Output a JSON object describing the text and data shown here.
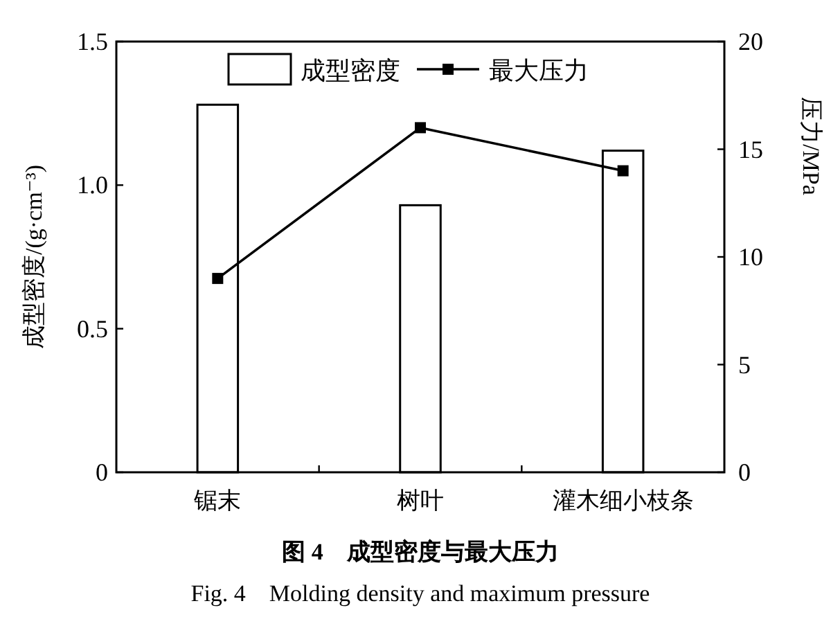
{
  "chart_data": {
    "type": "bar",
    "title": "图 4　成型密度与最大压力",
    "subtitle": "Fig. 4　Molding density and maximum pressure",
    "ylabel": "成型密度/(g·cm⁻³)",
    "y2label": "压力/MPa",
    "categories": [
      "锯末",
      "树叶",
      "灌木细小枝条"
    ],
    "series": [
      {
        "name": "成型密度",
        "color": "#ffffff",
        "values": [
          1.28,
          0.93,
          1.12
        ]
      },
      {
        "name": "最大压力",
        "type": "line",
        "axis": "y2",
        "marker": "square",
        "color": "#000000",
        "values": [
          9.0,
          16.0,
          14.0
        ]
      }
    ],
    "ylim": [
      0,
      1.5
    ],
    "yticks": [
      0,
      0.5,
      {
        "value": 1,
        "label": "1.0"
      },
      1.5
    ],
    "y2lim": [
      0,
      20
    ],
    "y2ticks": [
      0,
      5,
      10,
      15,
      20
    ],
    "legend": "top"
  }
}
